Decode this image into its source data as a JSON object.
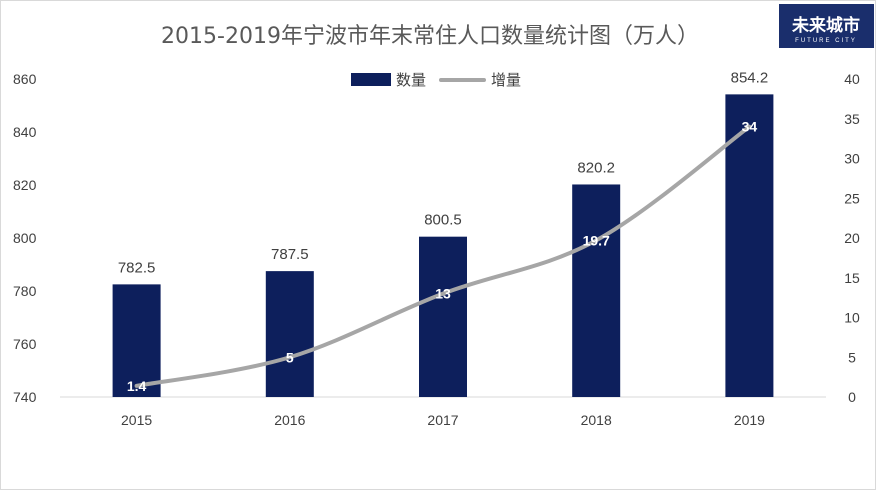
{
  "logo": {
    "main": "未来城市",
    "sub": "FUTURE CITY",
    "bg_color": "#1a2e6c"
  },
  "chart_data": {
    "type": "bar",
    "title": "2015-2019年宁波市年末常住人口数量统计图（万人）",
    "categories": [
      "2015",
      "2016",
      "2017",
      "2018",
      "2019"
    ],
    "series": [
      {
        "name": "数量",
        "kind": "bar",
        "axis": "left",
        "color": "#0d1f5c",
        "values": [
          782.5,
          787.5,
          800.5,
          820.2,
          854.2
        ],
        "labels": [
          "782.5",
          "787.5",
          "800.5",
          "820.2",
          "854.2"
        ]
      },
      {
        "name": "增量",
        "kind": "line",
        "axis": "right",
        "color": "#a6a6a6",
        "values": [
          1.4,
          5,
          13,
          19.7,
          34
        ],
        "labels": [
          "1.4",
          "5",
          "13",
          "19.7",
          "34"
        ]
      }
    ],
    "y_left": {
      "min": 740,
      "max": 860,
      "ticks": [
        "740",
        "760",
        "780",
        "800",
        "820",
        "840",
        "860"
      ]
    },
    "y_right": {
      "min": 0,
      "max": 40,
      "ticks": [
        "0",
        "5",
        "10",
        "15",
        "20",
        "25",
        "30",
        "35",
        "40"
      ]
    },
    "legend_position": "top-center",
    "grid": false
  }
}
